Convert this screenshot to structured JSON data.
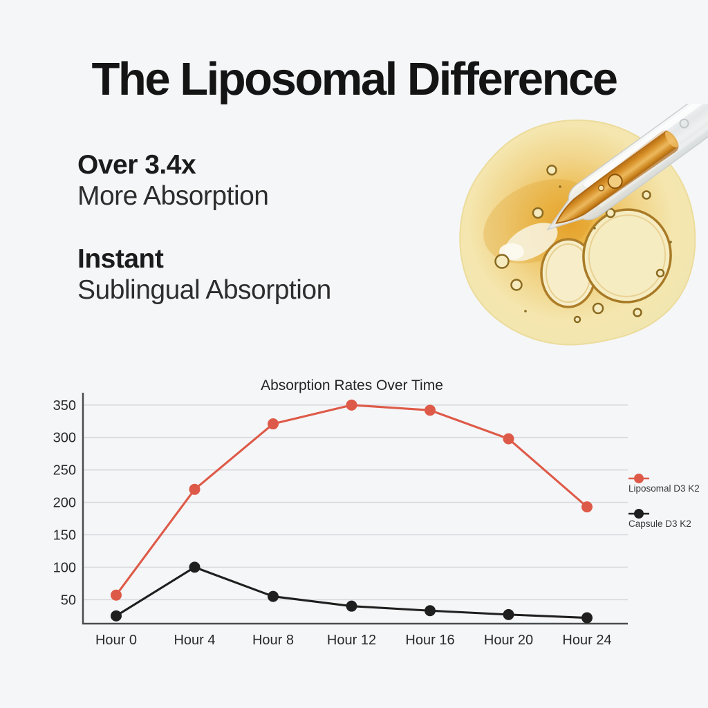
{
  "page": {
    "background": "#f5f6f8"
  },
  "heading": {
    "title": "The Liposomal Difference"
  },
  "benefits": [
    {
      "emphasis": "Over 3.4x",
      "detail": "More Absorption"
    },
    {
      "emphasis": "Instant",
      "detail": "Sublingual Absorption"
    }
  ],
  "hero": {
    "image_name": "oil-droplet-with-pipette"
  },
  "chart_data": {
    "type": "line",
    "title": "Absorption Rates Over Time",
    "categories": [
      "Hour 0",
      "Hour 4",
      "Hour 8",
      "Hour 12",
      "Hour 16",
      "Hour 20",
      "Hour 24"
    ],
    "series": [
      {
        "name": "Liposomal D3 K2",
        "color": "#de5a48",
        "values": [
          57,
          220,
          321,
          350,
          342,
          298,
          193
        ]
      },
      {
        "name": "Capsule D3 K2",
        "color": "#1f1f1f",
        "values": [
          25,
          100,
          55,
          40,
          33,
          27,
          22
        ]
      }
    ],
    "y_ticks": [
      50,
      100,
      150,
      200,
      250,
      300,
      350
    ],
    "ylim": [
      13,
      369
    ],
    "grid": true,
    "legend_position": "right",
    "xlabel": "",
    "ylabel": "",
    "colors": {
      "grid": "#d8dade",
      "axis": "#4a4d4f",
      "tick_text": "#27292b",
      "legend_text": "#3a3a3a"
    }
  }
}
